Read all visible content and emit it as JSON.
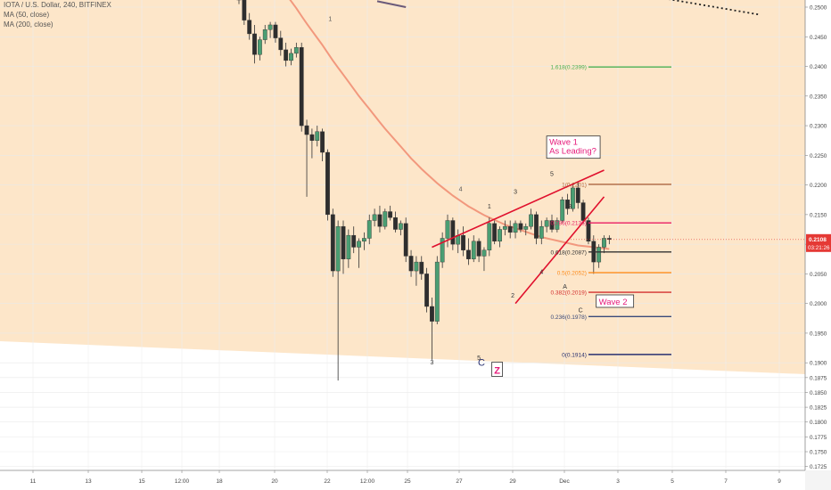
{
  "legend": {
    "symbol": "IOTA / U.S. Dollar, 240, BITFINEX",
    "ma50": "MA (50, close)",
    "ma200": "MA (200, close)"
  },
  "chart_data": {
    "type": "candlestick",
    "symbol": "IOTA / U.S. Dollar",
    "interval": "240",
    "exchange": "BITFINEX",
    "ylim": [
      0.1735,
      0.2515
    ],
    "y_ticks": [
      "0.2500",
      "0.2450",
      "0.2400",
      "0.2350",
      "0.2300",
      "0.2250",
      "0.2200",
      "0.2150",
      "0.2100",
      "0.2050",
      "0.2000",
      "0.1950",
      "0.1900",
      "0.1875",
      "0.1850",
      "0.1825",
      "0.1800",
      "0.1775",
      "0.1750",
      "0.1725"
    ],
    "y_tick_values": [
      0.25,
      0.245,
      0.24,
      0.235,
      0.23,
      0.225,
      0.22,
      0.215,
      0.21,
      0.205,
      0.2,
      0.195,
      0.19,
      0.1875,
      0.185,
      0.1825,
      0.18,
      0.1775,
      0.175,
      0.1725
    ],
    "x_ticks": [
      "11",
      "13",
      "15",
      "12:00",
      "18",
      "20",
      "22",
      "12:00",
      "25",
      "27",
      "29",
      "Dec",
      "3",
      "5",
      "7",
      "9"
    ],
    "current_price": "0.2108",
    "countdown": "03:21:26",
    "candles": [
      {
        "o": 0.252,
        "h": 0.253,
        "l": 0.2505,
        "c": 0.2512
      },
      {
        "o": 0.2512,
        "h": 0.2518,
        "l": 0.247,
        "c": 0.2478
      },
      {
        "o": 0.2478,
        "h": 0.249,
        "l": 0.2445,
        "c": 0.2455
      },
      {
        "o": 0.2455,
        "h": 0.247,
        "l": 0.2405,
        "c": 0.242
      },
      {
        "o": 0.242,
        "h": 0.245,
        "l": 0.241,
        "c": 0.2445
      },
      {
        "o": 0.2445,
        "h": 0.247,
        "l": 0.2438,
        "c": 0.2462
      },
      {
        "o": 0.2462,
        "h": 0.2475,
        "l": 0.2448,
        "c": 0.247
      },
      {
        "o": 0.247,
        "h": 0.2475,
        "l": 0.244,
        "c": 0.2448
      },
      {
        "o": 0.2448,
        "h": 0.246,
        "l": 0.2418,
        "c": 0.2428
      },
      {
        "o": 0.2428,
        "h": 0.244,
        "l": 0.24,
        "c": 0.241
      },
      {
        "o": 0.241,
        "h": 0.243,
        "l": 0.2402,
        "c": 0.2422
      },
      {
        "o": 0.2422,
        "h": 0.244,
        "l": 0.2415,
        "c": 0.2432
      },
      {
        "o": 0.2432,
        "h": 0.244,
        "l": 0.229,
        "c": 0.23
      },
      {
        "o": 0.23,
        "h": 0.231,
        "l": 0.218,
        "c": 0.2285
      },
      {
        "o": 0.2285,
        "h": 0.2295,
        "l": 0.2245,
        "c": 0.2275
      },
      {
        "o": 0.2275,
        "h": 0.23,
        "l": 0.2265,
        "c": 0.229
      },
      {
        "o": 0.229,
        "h": 0.2295,
        "l": 0.224,
        "c": 0.2255
      },
      {
        "o": 0.2255,
        "h": 0.226,
        "l": 0.214,
        "c": 0.215
      },
      {
        "o": 0.215,
        "h": 0.216,
        "l": 0.2045,
        "c": 0.2055
      },
      {
        "o": 0.2055,
        "h": 0.214,
        "l": 0.187,
        "c": 0.213
      },
      {
        "o": 0.213,
        "h": 0.214,
        "l": 0.205,
        "c": 0.2075
      },
      {
        "o": 0.2075,
        "h": 0.2125,
        "l": 0.206,
        "c": 0.2115
      },
      {
        "o": 0.2115,
        "h": 0.213,
        "l": 0.2085,
        "c": 0.2095
      },
      {
        "o": 0.2095,
        "h": 0.211,
        "l": 0.206,
        "c": 0.2105
      },
      {
        "o": 0.2105,
        "h": 0.212,
        "l": 0.209,
        "c": 0.211
      },
      {
        "o": 0.211,
        "h": 0.215,
        "l": 0.21,
        "c": 0.214
      },
      {
        "o": 0.214,
        "h": 0.216,
        "l": 0.213,
        "c": 0.215
      },
      {
        "o": 0.215,
        "h": 0.2165,
        "l": 0.212,
        "c": 0.213
      },
      {
        "o": 0.213,
        "h": 0.216,
        "l": 0.2125,
        "c": 0.2155
      },
      {
        "o": 0.2155,
        "h": 0.2165,
        "l": 0.214,
        "c": 0.2145
      },
      {
        "o": 0.2145,
        "h": 0.2155,
        "l": 0.212,
        "c": 0.2125
      },
      {
        "o": 0.2125,
        "h": 0.214,
        "l": 0.2115,
        "c": 0.2135
      },
      {
        "o": 0.2135,
        "h": 0.2145,
        "l": 0.207,
        "c": 0.208
      },
      {
        "o": 0.208,
        "h": 0.209,
        "l": 0.2045,
        "c": 0.2055
      },
      {
        "o": 0.2055,
        "h": 0.208,
        "l": 0.203,
        "c": 0.207
      },
      {
        "o": 0.207,
        "h": 0.208,
        "l": 0.204,
        "c": 0.205
      },
      {
        "o": 0.205,
        "h": 0.206,
        "l": 0.1985,
        "c": 0.1995
      },
      {
        "o": 0.1995,
        "h": 0.201,
        "l": 0.1905,
        "c": 0.197
      },
      {
        "o": 0.197,
        "h": 0.208,
        "l": 0.1965,
        "c": 0.207
      },
      {
        "o": 0.207,
        "h": 0.212,
        "l": 0.206,
        "c": 0.211
      },
      {
        "o": 0.211,
        "h": 0.215,
        "l": 0.2095,
        "c": 0.214
      },
      {
        "o": 0.214,
        "h": 0.2145,
        "l": 0.209,
        "c": 0.21
      },
      {
        "o": 0.21,
        "h": 0.2125,
        "l": 0.2085,
        "c": 0.2115
      },
      {
        "o": 0.2115,
        "h": 0.213,
        "l": 0.208,
        "c": 0.209
      },
      {
        "o": 0.209,
        "h": 0.211,
        "l": 0.2065,
        "c": 0.2075
      },
      {
        "o": 0.2075,
        "h": 0.2115,
        "l": 0.207,
        "c": 0.2105
      },
      {
        "o": 0.2105,
        "h": 0.211,
        "l": 0.207,
        "c": 0.208
      },
      {
        "o": 0.208,
        "h": 0.2095,
        "l": 0.2055,
        "c": 0.209
      },
      {
        "o": 0.209,
        "h": 0.2145,
        "l": 0.208,
        "c": 0.2135
      },
      {
        "o": 0.2135,
        "h": 0.214,
        "l": 0.21,
        "c": 0.2105
      },
      {
        "o": 0.2105,
        "h": 0.213,
        "l": 0.2095,
        "c": 0.2125
      },
      {
        "o": 0.2125,
        "h": 0.214,
        "l": 0.2115,
        "c": 0.213
      },
      {
        "o": 0.213,
        "h": 0.214,
        "l": 0.211,
        "c": 0.212
      },
      {
        "o": 0.212,
        "h": 0.214,
        "l": 0.211,
        "c": 0.2135
      },
      {
        "o": 0.2135,
        "h": 0.214,
        "l": 0.212,
        "c": 0.2125
      },
      {
        "o": 0.2125,
        "h": 0.2135,
        "l": 0.2115,
        "c": 0.213
      },
      {
        "o": 0.213,
        "h": 0.216,
        "l": 0.2125,
        "c": 0.215
      },
      {
        "o": 0.215,
        "h": 0.2155,
        "l": 0.21,
        "c": 0.211
      },
      {
        "o": 0.211,
        "h": 0.214,
        "l": 0.21,
        "c": 0.213
      },
      {
        "o": 0.213,
        "h": 0.2145,
        "l": 0.212,
        "c": 0.214
      },
      {
        "o": 0.214,
        "h": 0.215,
        "l": 0.212,
        "c": 0.2125
      },
      {
        "o": 0.2125,
        "h": 0.2145,
        "l": 0.212,
        "c": 0.214
      },
      {
        "o": 0.214,
        "h": 0.218,
        "l": 0.2135,
        "c": 0.2175
      },
      {
        "o": 0.2175,
        "h": 0.2185,
        "l": 0.215,
        "c": 0.216
      },
      {
        "o": 0.216,
        "h": 0.22,
        "l": 0.2155,
        "c": 0.2195
      },
      {
        "o": 0.2195,
        "h": 0.2205,
        "l": 0.216,
        "c": 0.217
      },
      {
        "o": 0.217,
        "h": 0.2175,
        "l": 0.2135,
        "c": 0.214
      },
      {
        "o": 0.214,
        "h": 0.2145,
        "l": 0.21,
        "c": 0.2105
      },
      {
        "o": 0.2105,
        "h": 0.2115,
        "l": 0.205,
        "c": 0.207
      },
      {
        "o": 0.207,
        "h": 0.21,
        "l": 0.206,
        "c": 0.2095
      },
      {
        "o": 0.2095,
        "h": 0.2115,
        "l": 0.2085,
        "c": 0.211
      },
      {
        "o": 0.211,
        "h": 0.2115,
        "l": 0.21,
        "c": 0.2108
      }
    ],
    "ma200": [
      0.2595,
      0.259,
      0.2585,
      0.258,
      0.2573,
      0.2565,
      0.2555,
      0.2545,
      0.2534,
      0.2522,
      0.251,
      0.2498,
      0.2485,
      0.2472,
      0.246,
      0.2448,
      0.2436,
      0.2423,
      0.241,
      0.2398,
      0.2386,
      0.2374,
      0.2362,
      0.235,
      0.2339,
      0.2328,
      0.2317,
      0.2306,
      0.2295,
      0.2285,
      0.2275,
      0.2265,
      0.2255,
      0.2245,
      0.2236,
      0.2227,
      0.2219,
      0.2211,
      0.2203,
      0.2196,
      0.2189,
      0.2182,
      0.2176,
      0.217,
      0.2164,
      0.2159,
      0.2154,
      0.2149,
      0.2145,
      0.2141,
      0.2137,
      0.2133,
      0.213,
      0.2127,
      0.2124,
      0.2121,
      0.2118,
      0.2115,
      0.2112,
      0.211,
      0.2108,
      0.2106,
      0.2104,
      0.2102,
      0.21,
      0.2098,
      0.2097,
      0.2096,
      0.2095,
      0.2094,
      0.2093,
      0.2092
    ],
    "ma50_dotted": [
      {
        "t": 68,
        "v": 0.2535
      },
      {
        "t": 100,
        "v": 0.2487
      }
    ],
    "ma_line_short": [
      {
        "t": 26.5,
        "v": 0.251
      },
      {
        "t": 32,
        "v": 0.25
      }
    ],
    "fib_levels": [
      {
        "label": "1.618(0.2399)",
        "value": 0.2399,
        "color": "#4caf50"
      },
      {
        "label": "1(0.2201)",
        "value": 0.2201,
        "color": "#b0643a"
      },
      {
        "label": "0.786(0.2136)",
        "value": 0.2136,
        "color": "#e91e63"
      },
      {
        "label": "0.618(0.2087)",
        "value": 0.2087,
        "color": "#333333"
      },
      {
        "label": "0.5(0.2052)",
        "value": 0.2052,
        "color": "#ff8c1a"
      },
      {
        "label": "0.382(0.2019)",
        "value": 0.2019,
        "color": "#d32f2f"
      },
      {
        "label": "0.236(0.1978)",
        "value": 0.1978,
        "color": "#3a4a7a"
      },
      {
        "label": "0(0.1914)",
        "value": 0.1914,
        "color": "#283070"
      }
    ],
    "fib_range": {
      "t_start": 67,
      "t_end": 79
    },
    "wedge_lines": [
      {
        "t1": 37,
        "v1": 0.2095,
        "t2": 70,
        "v2": 0.2225
      },
      {
        "t1": 53,
        "v1": 0.2,
        "t2": 70,
        "v2": 0.218
      }
    ],
    "wave_labels": [
      {
        "text": "1",
        "t": 48,
        "v": 0.216,
        "color": "#333"
      },
      {
        "text": "2",
        "t": 52.5,
        "v": 0.201,
        "color": "#333"
      },
      {
        "text": "3",
        "t": 53,
        "v": 0.2185,
        "color": "#333"
      },
      {
        "text": "4",
        "t": 58,
        "v": 0.205,
        "color": "#333"
      },
      {
        "text": "5",
        "t": 60,
        "v": 0.2215,
        "color": "#333"
      },
      {
        "text": "A",
        "t": 62.5,
        "v": 0.2025,
        "color": "#333"
      },
      {
        "text": "B",
        "t": 63.5,
        "v": 0.216,
        "color": "#333"
      },
      {
        "text": "C",
        "t": 65.5,
        "v": 0.1985,
        "color": "#333"
      },
      {
        "text": "4",
        "t": 42.5,
        "v": 0.219,
        "color": "#555"
      },
      {
        "text": "3",
        "t": 37,
        "v": 0.1897,
        "color": "#333"
      },
      {
        "text": "5",
        "t": 46,
        "v": 0.1905,
        "color": "#333"
      },
      {
        "text": "1",
        "t": 17.5,
        "v": 0.2477,
        "color": "#555"
      }
    ],
    "annotations": [
      {
        "id": "wave1",
        "lines": [
          "Wave 1",
          "As Leading?"
        ],
        "t": 59.5,
        "v": 0.2245,
        "color": "#e6197a"
      },
      {
        "id": "wave2",
        "text": "Wave 2",
        "t": 69,
        "v": 0.1998,
        "color": "#e6197a"
      },
      {
        "id": "z",
        "text": "Z",
        "t": 49.5,
        "v": 0.1886,
        "color": "#e6197a"
      },
      {
        "id": "cbig",
        "text": "C",
        "t": 46.5,
        "v": 0.1895,
        "color": "#283070"
      }
    ],
    "colors": {
      "up": "#4a9e73",
      "down": "#2e2e2e",
      "zone": "#fde6c9",
      "ma200": "#f08a70",
      "last_price": "#e53935",
      "wedge": "#e0102d"
    }
  }
}
